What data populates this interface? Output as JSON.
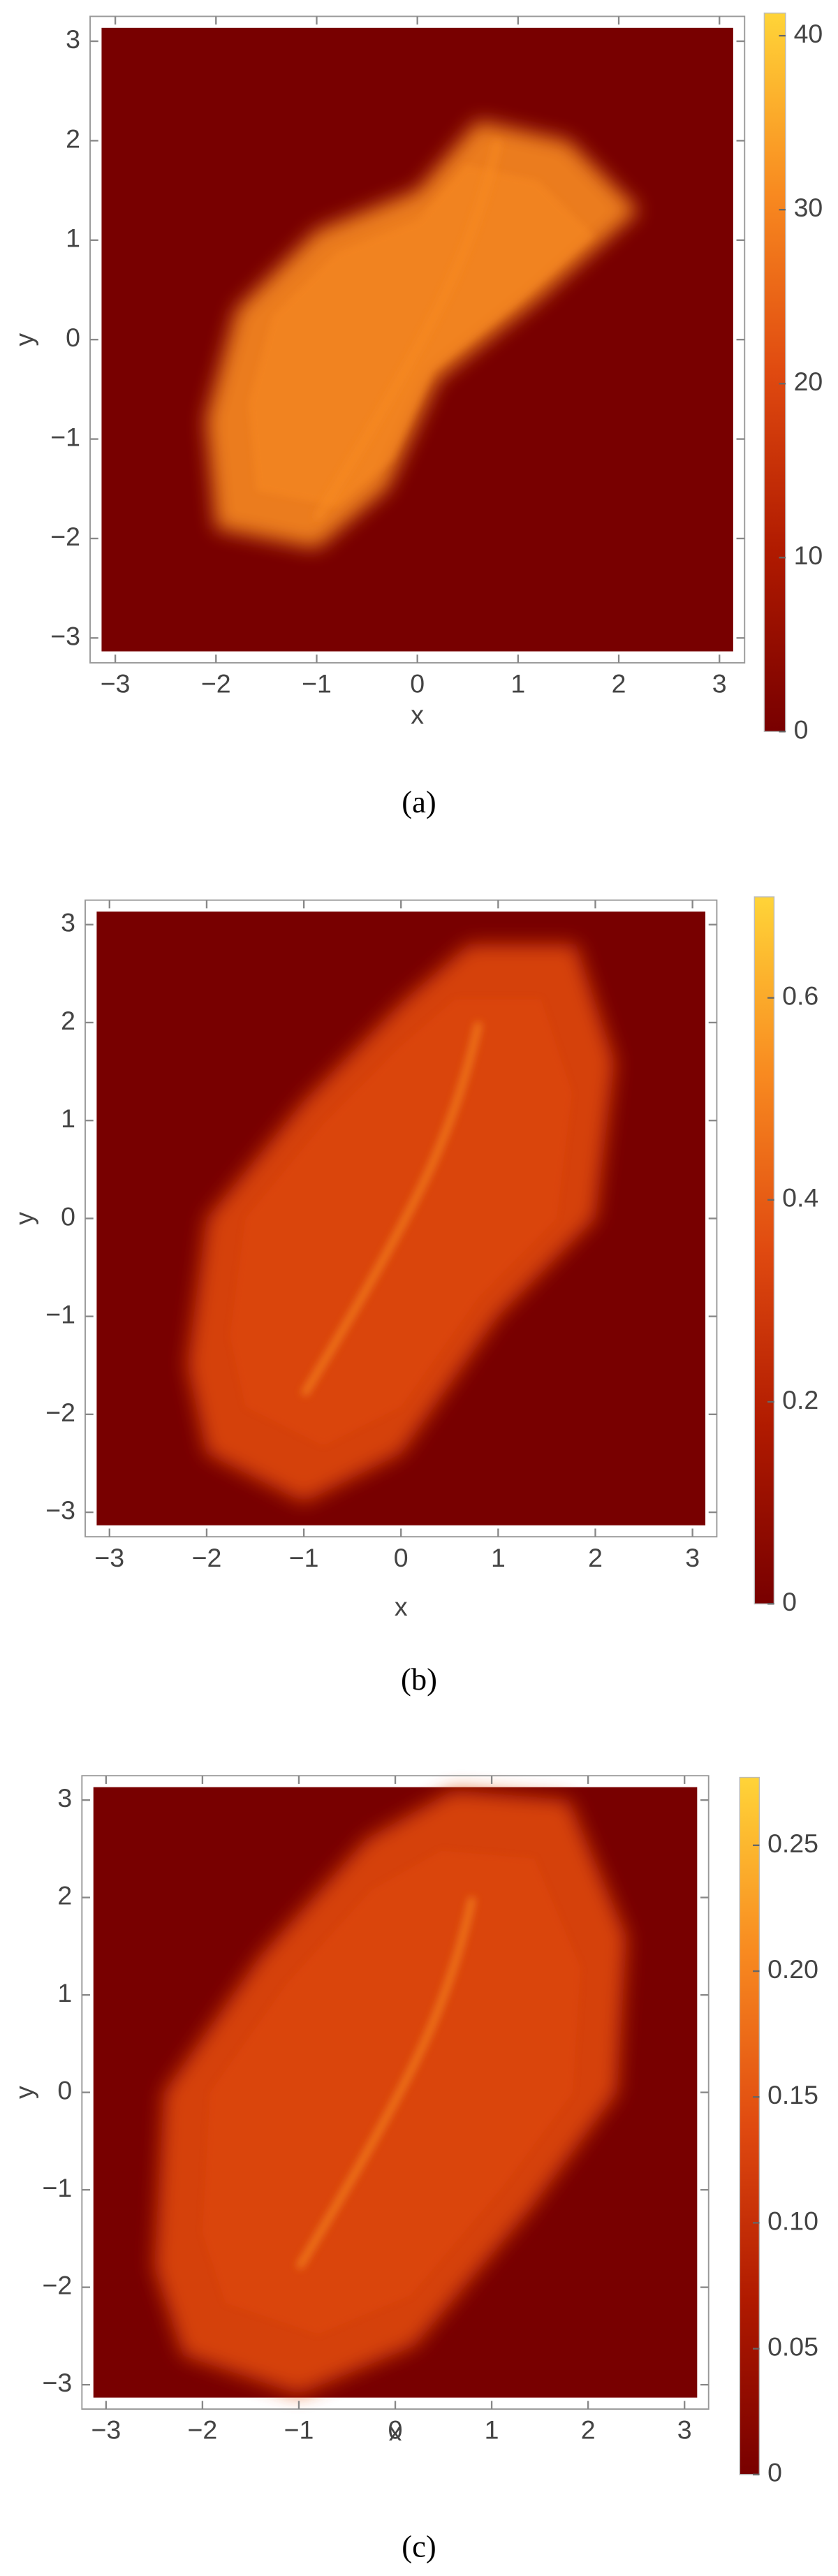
{
  "chart_data": [
    {
      "type": "heatmap",
      "xlabel": "x",
      "ylabel": "y",
      "caption": "(a)",
      "xlim": [
        -3.25,
        3.25
      ],
      "ylim": [
        -3.25,
        3.25
      ],
      "xticks": [
        {
          "value": -3,
          "label": "−3"
        },
        {
          "value": -2,
          "label": "−2"
        },
        {
          "value": -1,
          "label": "−1"
        },
        0,
        1,
        2,
        3
      ],
      "yticks": [
        {
          "value": -3,
          "label": "−3"
        },
        {
          "value": -2,
          "label": "−2"
        },
        {
          "value": -1,
          "label": "−1"
        },
        0,
        1,
        2,
        3
      ],
      "colorbar": {
        "lim": [
          0,
          41.3
        ],
        "ticks": [
          0,
          10,
          20,
          30,
          40
        ]
      },
      "colormap": [
        "#780000",
        "#b01a00",
        "#e04a10",
        "#f88a20",
        "#ffd438"
      ]
    },
    {
      "type": "heatmap",
      "xlabel": "x",
      "ylabel": "y",
      "caption": "(b)",
      "xlim": [
        -3.25,
        3.25
      ],
      "ylim": [
        -3.25,
        3.25
      ],
      "xticks": [
        {
          "value": -3,
          "label": "−3"
        },
        {
          "value": -2,
          "label": "−2"
        },
        {
          "value": -1,
          "label": "−1"
        },
        0,
        1,
        2,
        3
      ],
      "yticks": [
        {
          "value": -3,
          "label": "−3"
        },
        {
          "value": -2,
          "label": "−2"
        },
        {
          "value": -1,
          "label": "−1"
        },
        0,
        1,
        2,
        3
      ],
      "colorbar": {
        "lim": [
          0,
          0.7
        ],
        "ticks": [
          0,
          0.2,
          0.4,
          0.6
        ]
      },
      "colormap": [
        "#780000",
        "#b01a00",
        "#e04a10",
        "#f88a20",
        "#ffd438"
      ]
    },
    {
      "type": "heatmap",
      "xlabel": "x",
      "ylabel": "y",
      "caption": "(c)",
      "xlim": [
        -3.25,
        3.25
      ],
      "ylim": [
        -3.25,
        3.25
      ],
      "xticks": [
        {
          "value": -3,
          "label": "−3"
        },
        {
          "value": -2,
          "label": "−2"
        },
        {
          "value": -1,
          "label": "−1"
        },
        0,
        1,
        2,
        3
      ],
      "yticks": [
        {
          "value": -3,
          "label": "−3"
        },
        {
          "value": -2,
          "label": "−2"
        },
        {
          "value": -1,
          "label": "−1"
        },
        0,
        1,
        2,
        3
      ],
      "colorbar": {
        "lim": [
          0,
          0.277
        ],
        "ticks": [
          0,
          {
            "value": 0.05,
            "label": "0.05"
          },
          {
            "value": 0.1,
            "label": "0.10"
          },
          0.15,
          {
            "value": 0.2,
            "label": "0.20"
          },
          0.25
        ]
      },
      "colormap": [
        "#780000",
        "#b01a00",
        "#e04a10",
        "#f88a20",
        "#ffd438"
      ]
    }
  ]
}
